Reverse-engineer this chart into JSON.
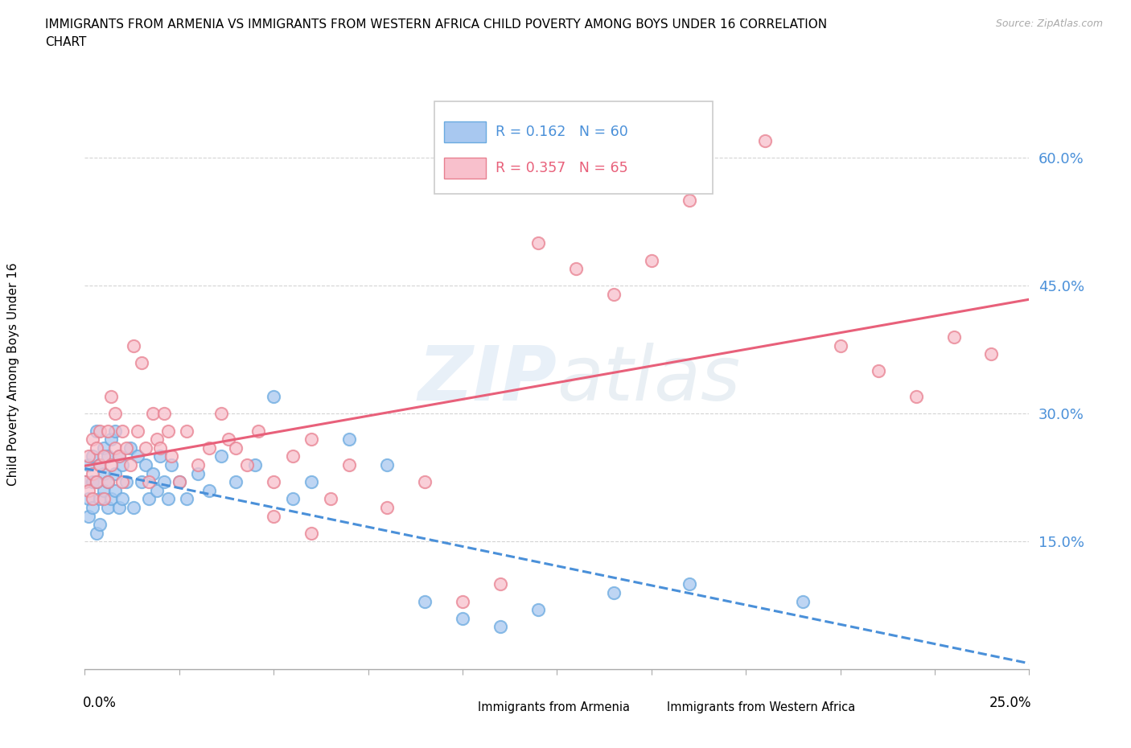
{
  "title_line1": "IMMIGRANTS FROM ARMENIA VS IMMIGRANTS FROM WESTERN AFRICA CHILD POVERTY AMONG BOYS UNDER 16 CORRELATION",
  "title_line2": "CHART",
  "source": "Source: ZipAtlas.com",
  "ylabel_text": "Child Poverty Among Boys Under 16",
  "watermark": "ZIPAtlas",
  "series": [
    {
      "name": "Immigrants from Armenia",
      "R": 0.162,
      "N": 60,
      "color": "#a8c8f0",
      "edge_color": "#6aaae0",
      "trend_color": "#4a90d9",
      "trend_style": "--"
    },
    {
      "name": "Immigrants from Western Africa",
      "R": 0.357,
      "N": 65,
      "color": "#f8c0cc",
      "edge_color": "#e88090",
      "trend_color": "#e8607a",
      "trend_style": "-"
    }
  ],
  "armenia_x": [
    0.0,
    0.001,
    0.001,
    0.001,
    0.002,
    0.002,
    0.002,
    0.003,
    0.003,
    0.003,
    0.004,
    0.004,
    0.004,
    0.005,
    0.005,
    0.005,
    0.006,
    0.006,
    0.006,
    0.007,
    0.007,
    0.008,
    0.008,
    0.008,
    0.009,
    0.009,
    0.01,
    0.01,
    0.011,
    0.012,
    0.013,
    0.014,
    0.015,
    0.016,
    0.017,
    0.018,
    0.019,
    0.02,
    0.021,
    0.022,
    0.023,
    0.025,
    0.027,
    0.03,
    0.033,
    0.036,
    0.04,
    0.045,
    0.05,
    0.055,
    0.06,
    0.07,
    0.08,
    0.09,
    0.1,
    0.11,
    0.12,
    0.14,
    0.16,
    0.19
  ],
  "armenia_y": [
    0.22,
    0.18,
    0.24,
    0.2,
    0.19,
    0.22,
    0.25,
    0.16,
    0.22,
    0.28,
    0.17,
    0.24,
    0.2,
    0.21,
    0.26,
    0.23,
    0.19,
    0.25,
    0.22,
    0.27,
    0.2,
    0.23,
    0.28,
    0.21,
    0.25,
    0.19,
    0.24,
    0.2,
    0.22,
    0.26,
    0.19,
    0.25,
    0.22,
    0.24,
    0.2,
    0.23,
    0.21,
    0.25,
    0.22,
    0.2,
    0.24,
    0.22,
    0.2,
    0.23,
    0.21,
    0.25,
    0.22,
    0.24,
    0.32,
    0.2,
    0.22,
    0.27,
    0.24,
    0.08,
    0.06,
    0.05,
    0.07,
    0.09,
    0.1,
    0.08
  ],
  "western_africa_x": [
    0.0,
    0.001,
    0.001,
    0.002,
    0.002,
    0.002,
    0.003,
    0.003,
    0.004,
    0.004,
    0.005,
    0.005,
    0.006,
    0.006,
    0.007,
    0.007,
    0.008,
    0.008,
    0.009,
    0.01,
    0.01,
    0.011,
    0.012,
    0.013,
    0.014,
    0.015,
    0.016,
    0.017,
    0.018,
    0.019,
    0.02,
    0.021,
    0.022,
    0.023,
    0.025,
    0.027,
    0.03,
    0.033,
    0.036,
    0.038,
    0.04,
    0.043,
    0.046,
    0.05,
    0.055,
    0.06,
    0.065,
    0.07,
    0.08,
    0.09,
    0.1,
    0.11,
    0.12,
    0.13,
    0.14,
    0.15,
    0.16,
    0.18,
    0.2,
    0.21,
    0.22,
    0.23,
    0.24,
    0.05,
    0.06
  ],
  "western_africa_y": [
    0.22,
    0.25,
    0.21,
    0.2,
    0.27,
    0.23,
    0.26,
    0.22,
    0.24,
    0.28,
    0.2,
    0.25,
    0.28,
    0.22,
    0.32,
    0.24,
    0.26,
    0.3,
    0.25,
    0.22,
    0.28,
    0.26,
    0.24,
    0.38,
    0.28,
    0.36,
    0.26,
    0.22,
    0.3,
    0.27,
    0.26,
    0.3,
    0.28,
    0.25,
    0.22,
    0.28,
    0.24,
    0.26,
    0.3,
    0.27,
    0.26,
    0.24,
    0.28,
    0.22,
    0.25,
    0.27,
    0.2,
    0.24,
    0.19,
    0.22,
    0.08,
    0.1,
    0.5,
    0.47,
    0.44,
    0.48,
    0.55,
    0.62,
    0.38,
    0.35,
    0.32,
    0.39,
    0.37,
    0.18,
    0.16
  ],
  "xlim": [
    0.0,
    0.25
  ],
  "ylim": [
    0.0,
    0.68
  ],
  "yticks": [
    0.15,
    0.3,
    0.45,
    0.6
  ],
  "xtick_count": 10,
  "background_color": "#ffffff",
  "grid_color": "#d0d0d0"
}
